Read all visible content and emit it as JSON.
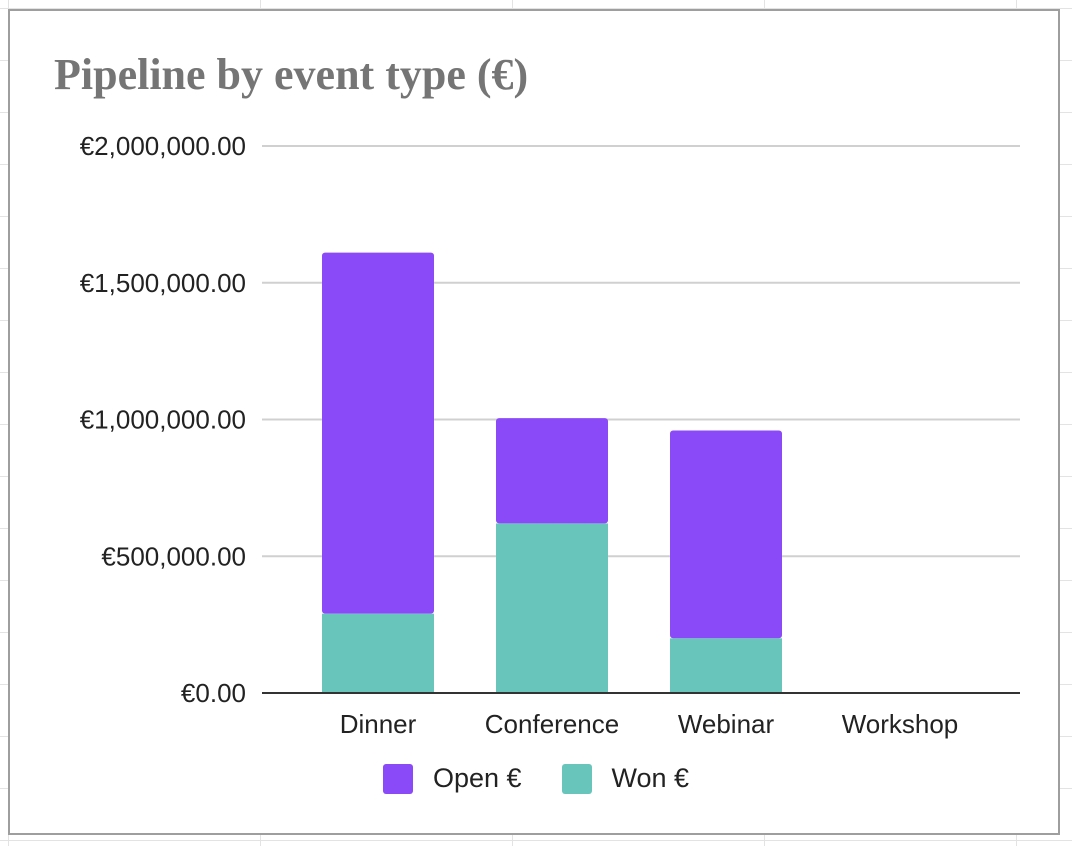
{
  "chart_data": {
    "type": "bar",
    "stacked": true,
    "title": "Pipeline by event type (€)",
    "categories": [
      "Dinner",
      "Conference",
      "Webinar",
      "Workshop"
    ],
    "series": [
      {
        "name": "Won €",
        "color": "#67c5bb",
        "values": [
          290000,
          620000,
          200000,
          0
        ]
      },
      {
        "name": "Open €",
        "color": "#8a4af7",
        "values": [
          1320000,
          385000,
          760000,
          0
        ]
      }
    ],
    "ylim": [
      0,
      2000000
    ],
    "yticks": [
      0,
      500000,
      1000000,
      1500000,
      2000000
    ],
    "ytick_labels": [
      "€0.00",
      "€500,000.00",
      "€1,000,000.00",
      "€1,500,000.00",
      "€2,000,000.00"
    ],
    "xlabel": "",
    "ylabel": "",
    "grid": true,
    "legend": {
      "position": "bottom",
      "entries": [
        {
          "name": "Open €",
          "color": "#8a4af7"
        },
        {
          "name": "Won €",
          "color": "#67c5bb"
        }
      ]
    }
  }
}
